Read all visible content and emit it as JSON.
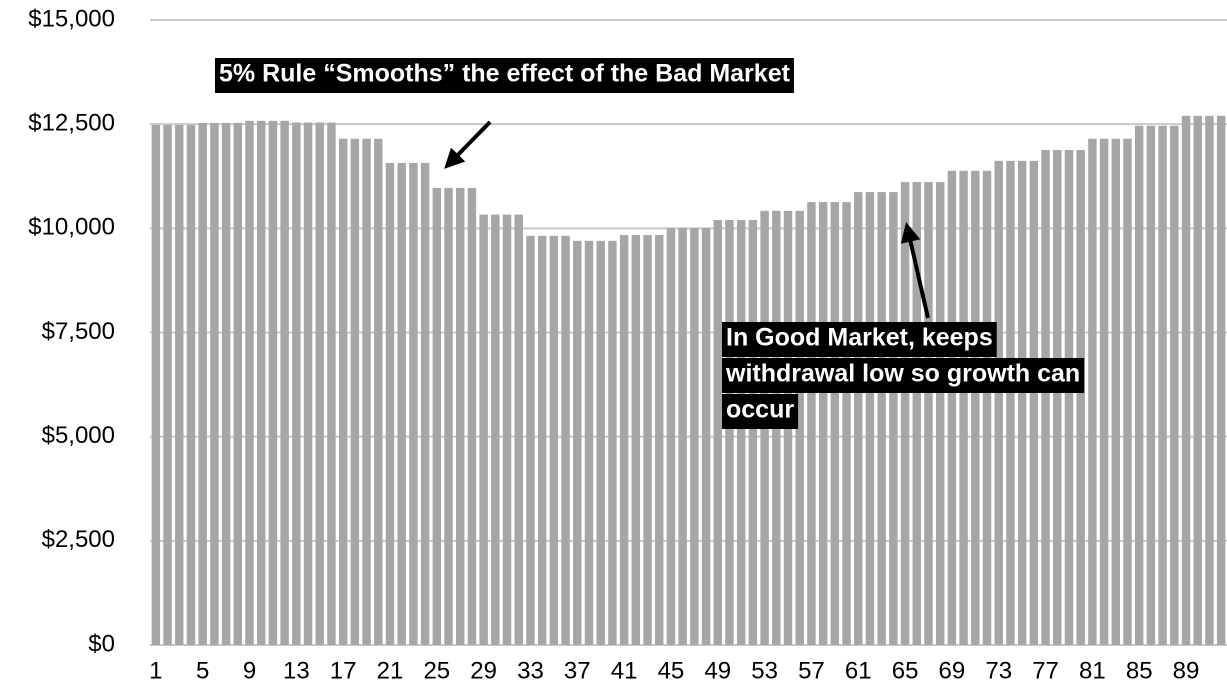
{
  "chart_data": {
    "type": "bar",
    "categories": [
      "1",
      null,
      null,
      null,
      "5",
      null,
      null,
      null,
      "9",
      null,
      null,
      null,
      "13",
      null,
      null,
      null,
      "17",
      null,
      null,
      null,
      "21",
      null,
      null,
      null,
      "25",
      null,
      null,
      null,
      "29",
      null,
      null,
      null,
      "33",
      null,
      null,
      null,
      "37",
      null,
      null,
      null,
      "41",
      null,
      null,
      null,
      "45",
      null,
      null,
      null,
      "49",
      null,
      null,
      null,
      "53",
      null,
      null,
      null,
      "57",
      null,
      null,
      null,
      "61",
      null,
      null,
      null,
      "65",
      null,
      null,
      null,
      "69",
      null,
      null,
      null,
      "73",
      null,
      null,
      null,
      "77",
      null,
      null,
      null,
      "81",
      null,
      null,
      null,
      "85",
      null,
      null,
      null,
      "89",
      null,
      null,
      null
    ],
    "values": [
      12480,
      12480,
      12480,
      12480,
      12530,
      12530,
      12530,
      12530,
      12580,
      12580,
      12580,
      12580,
      12540,
      12540,
      12540,
      12540,
      12150,
      12150,
      12150,
      12150,
      11570,
      11570,
      11570,
      11570,
      10970,
      10970,
      10970,
      10970,
      10330,
      10330,
      10330,
      10330,
      9820,
      9820,
      9820,
      9820,
      9700,
      9700,
      9700,
      9700,
      9840,
      9840,
      9840,
      9840,
      10010,
      10010,
      10010,
      10010,
      10200,
      10200,
      10200,
      10200,
      10420,
      10420,
      10420,
      10420,
      10630,
      10630,
      10630,
      10630,
      10870,
      10870,
      10870,
      10870,
      11110,
      11110,
      11110,
      11110,
      11380,
      11380,
      11380,
      11380,
      11620,
      11620,
      11620,
      11620,
      11880,
      11880,
      11880,
      11880,
      12150,
      12150,
      12150,
      12150,
      12460,
      12460,
      12460,
      12460,
      12700,
      12700,
      12700,
      12700
    ],
    "color": "#a6a6a6",
    "ylim": [
      0,
      15000
    ],
    "yticks": [
      {
        "value": 0,
        "label": "$0"
      },
      {
        "value": 2500,
        "label": "$2,500"
      },
      {
        "value": 5000,
        "label": "$5,000"
      },
      {
        "value": 7500,
        "label": "$7,500"
      },
      {
        "value": 10000,
        "label": "$10,000"
      },
      {
        "value": 12500,
        "label": "$12,500"
      },
      {
        "value": 15000,
        "label": "$15,000"
      }
    ],
    "grid": true,
    "annotations": [
      {
        "lines": [
          "5% Rule “Smooths” the effect of the Bad Market"
        ]
      },
      {
        "lines": [
          "In Good Market, keeps",
          "withdrawal low so growth can",
          "occur"
        ]
      }
    ]
  }
}
